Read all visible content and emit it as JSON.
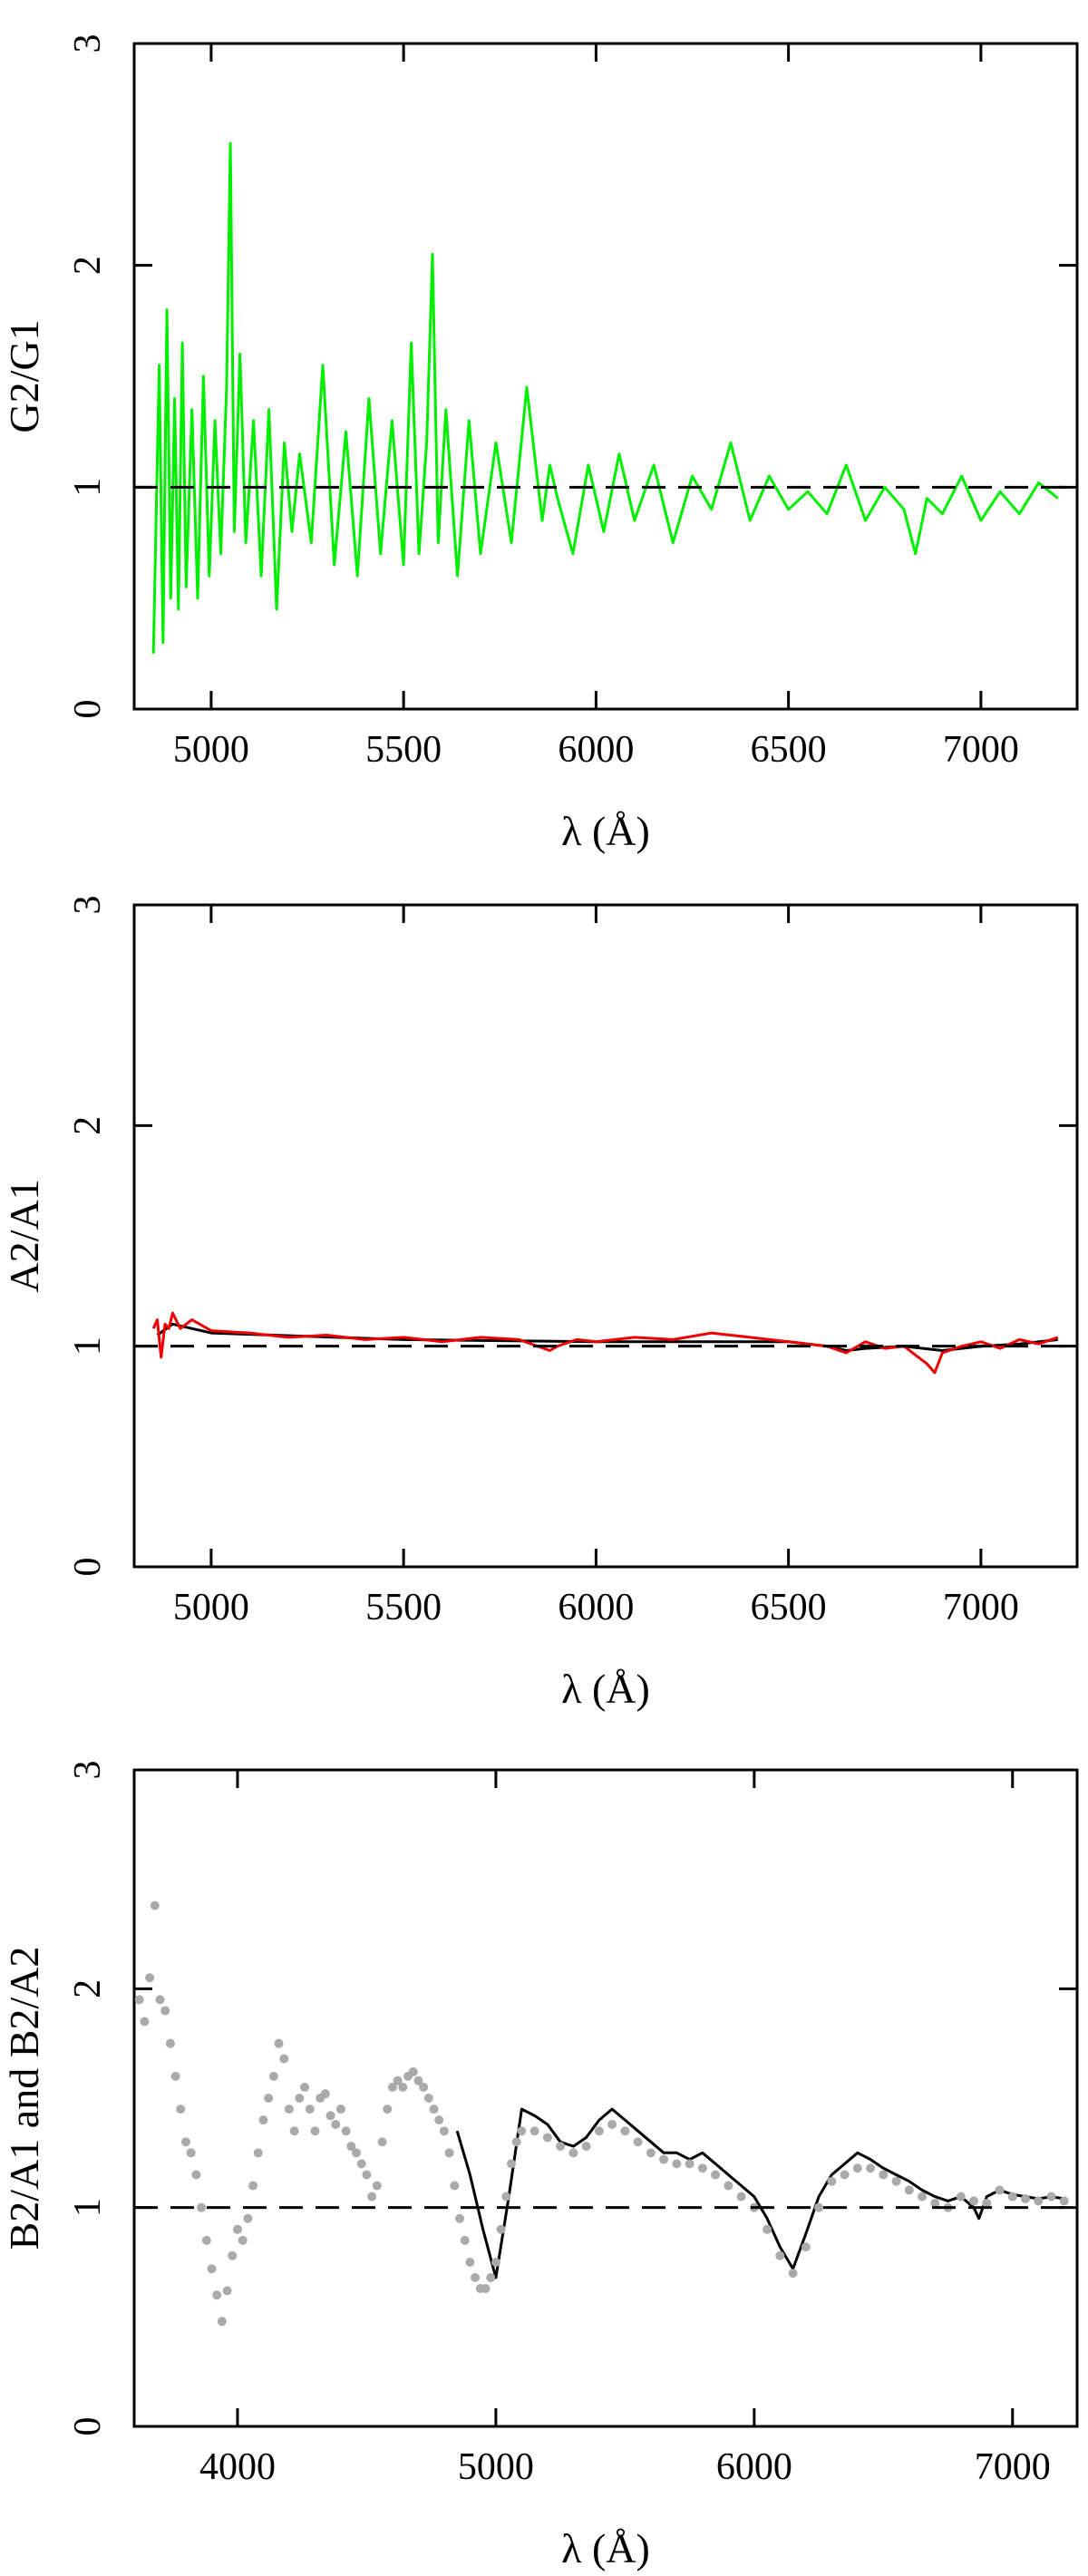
{
  "chart_data": [
    {
      "type": "line",
      "xlabel": "λ (Å)",
      "ylabel": "G2/G1",
      "xlim": [
        4800,
        7250
      ],
      "ylim": [
        0,
        3
      ],
      "xticks": [
        5000,
        5500,
        6000,
        6500,
        7000
      ],
      "yticks": [
        0,
        1,
        2,
        3
      ],
      "reference_line": 1,
      "series": [
        {
          "color": "#00ee00",
          "x": [
            4850,
            4865,
            4875,
            4885,
            4895,
            4905,
            4915,
            4925,
            4935,
            4950,
            4965,
            4980,
            4995,
            5010,
            5025,
            5040,
            5050,
            5060,
            5075,
            5090,
            5110,
            5130,
            5150,
            5170,
            5190,
            5210,
            5230,
            5260,
            5290,
            5320,
            5350,
            5380,
            5410,
            5440,
            5470,
            5500,
            5520,
            5540,
            5560,
            5575,
            5590,
            5610,
            5640,
            5670,
            5700,
            5740,
            5780,
            5820,
            5860,
            5880,
            5900,
            5940,
            5980,
            6020,
            6060,
            6100,
            6150,
            6200,
            6250,
            6300,
            6350,
            6400,
            6450,
            6500,
            6550,
            6600,
            6650,
            6700,
            6750,
            6800,
            6830,
            6860,
            6900,
            6950,
            7000,
            7050,
            7100,
            7150,
            7200
          ],
          "values": [
            0.25,
            1.55,
            0.3,
            1.8,
            0.5,
            1.4,
            0.45,
            1.65,
            0.55,
            1.35,
            0.5,
            1.5,
            0.6,
            1.3,
            0.7,
            1.45,
            2.55,
            0.8,
            1.6,
            0.75,
            1.3,
            0.6,
            1.35,
            0.45,
            1.2,
            0.8,
            1.15,
            0.75,
            1.55,
            0.65,
            1.25,
            0.6,
            1.4,
            0.7,
            1.3,
            0.65,
            1.65,
            0.7,
            1.2,
            2.05,
            0.75,
            1.35,
            0.6,
            1.3,
            0.7,
            1.2,
            0.75,
            1.45,
            0.85,
            1.1,
            0.95,
            0.7,
            1.1,
            0.8,
            1.15,
            0.85,
            1.1,
            0.75,
            1.05,
            0.9,
            1.2,
            0.85,
            1.05,
            0.9,
            0.98,
            0.88,
            1.1,
            0.85,
            1.0,
            0.9,
            0.7,
            0.95,
            0.88,
            1.05,
            0.85,
            0.98,
            0.88,
            1.02,
            0.95
          ]
        }
      ]
    },
    {
      "type": "line",
      "xlabel": "λ (Å)",
      "ylabel": "A2/A1",
      "xlim": [
        4800,
        7250
      ],
      "ylim": [
        0,
        3
      ],
      "xticks": [
        5000,
        5500,
        6000,
        6500,
        7000
      ],
      "yticks": [
        0,
        1,
        2,
        3
      ],
      "reference_line": 1,
      "series": [
        {
          "color": "#000000",
          "x": [
            4860,
            4900,
            5000,
            5500,
            6000,
            6500,
            6600,
            6650,
            6700,
            6800,
            6850,
            6900,
            7000,
            7100,
            7200
          ],
          "values": [
            1.05,
            1.1,
            1.06,
            1.03,
            1.02,
            1.02,
            1.0,
            0.98,
            0.99,
            1.0,
            0.99,
            0.98,
            1.0,
            1.01,
            1.03
          ]
        },
        {
          "color": "#ee0000",
          "x": [
            4850,
            4860,
            4870,
            4880,
            4890,
            4900,
            4920,
            4950,
            5000,
            5100,
            5200,
            5300,
            5400,
            5500,
            5600,
            5700,
            5800,
            5880,
            5900,
            5950,
            6000,
            6100,
            6200,
            6300,
            6400,
            6500,
            6600,
            6650,
            6700,
            6750,
            6800,
            6860,
            6880,
            6900,
            6950,
            7000,
            7050,
            7100,
            7150,
            7200
          ],
          "values": [
            1.08,
            1.12,
            0.95,
            1.1,
            1.08,
            1.15,
            1.08,
            1.12,
            1.07,
            1.06,
            1.04,
            1.05,
            1.03,
            1.04,
            1.02,
            1.04,
            1.03,
            0.98,
            1.0,
            1.03,
            1.02,
            1.04,
            1.03,
            1.06,
            1.04,
            1.02,
            1.0,
            0.97,
            1.02,
            0.99,
            1.0,
            0.92,
            0.88,
            0.97,
            1.0,
            1.02,
            0.99,
            1.03,
            1.01,
            1.04
          ]
        }
      ]
    },
    {
      "type": "line",
      "xlabel": "λ (Å)",
      "ylabel": "B2/A1 and B2/A2",
      "xlim": [
        3600,
        7250
      ],
      "ylim": [
        0,
        3
      ],
      "xticks": [
        4000,
        5000,
        6000,
        7000
      ],
      "yticks": [
        0,
        1,
        2,
        3
      ],
      "reference_line": 1,
      "series": [
        {
          "color": "#000000",
          "x": [
            4850,
            4900,
            4950,
            5000,
            5050,
            5100,
            5150,
            5200,
            5250,
            5300,
            5350,
            5400,
            5450,
            5500,
            5550,
            5600,
            5650,
            5700,
            5750,
            5800,
            5850,
            5900,
            5950,
            6000,
            6050,
            6100,
            6150,
            6200,
            6250,
            6300,
            6350,
            6400,
            6450,
            6500,
            6550,
            6600,
            6650,
            6700,
            6750,
            6800,
            6850,
            6870,
            6900,
            6950,
            7000,
            7050,
            7100,
            7150,
            7200
          ],
          "values": [
            1.35,
            1.15,
            0.9,
            0.68,
            1.05,
            1.45,
            1.42,
            1.38,
            1.3,
            1.28,
            1.32,
            1.4,
            1.45,
            1.4,
            1.35,
            1.3,
            1.25,
            1.25,
            1.22,
            1.25,
            1.2,
            1.15,
            1.1,
            1.05,
            0.95,
            0.82,
            0.72,
            0.88,
            1.05,
            1.15,
            1.2,
            1.25,
            1.22,
            1.18,
            1.15,
            1.12,
            1.08,
            1.05,
            1.03,
            1.05,
            1.0,
            0.95,
            1.05,
            1.08,
            1.06,
            1.05,
            1.04,
            1.05,
            1.04
          ]
        },
        {
          "color": "#aaaaaa",
          "marker": "dot",
          "x": [
            3620,
            3640,
            3660,
            3680,
            3700,
            3720,
            3740,
            3760,
            3780,
            3800,
            3820,
            3840,
            3860,
            3880,
            3900,
            3920,
            3940,
            3960,
            3980,
            4000,
            4020,
            4040,
            4060,
            4080,
            4100,
            4120,
            4140,
            4160,
            4180,
            4200,
            4220,
            4240,
            4260,
            4280,
            4300,
            4320,
            4340,
            4360,
            4380,
            4400,
            4420,
            4440,
            4460,
            4480,
            4500,
            4520,
            4540,
            4560,
            4580,
            4600,
            4620,
            4640,
            4660,
            4680,
            4700,
            4720,
            4740,
            4760,
            4780,
            4800,
            4820,
            4840,
            4860,
            4880,
            4900,
            4920,
            4940,
            4960,
            4980,
            5000,
            5020,
            5040,
            5060,
            5080,
            5100,
            5150,
            5200,
            5250,
            5300,
            5350,
            5400,
            5450,
            5500,
            5550,
            5600,
            5650,
            5700,
            5750,
            5800,
            5850,
            5900,
            5950,
            6000,
            6050,
            6100,
            6150,
            6200,
            6250,
            6300,
            6350,
            6400,
            6450,
            6500,
            6550,
            6600,
            6650,
            6700,
            6750,
            6800,
            6850,
            6900,
            6950,
            7000,
            7050,
            7100,
            7150,
            7200
          ],
          "values": [
            1.95,
            1.85,
            2.05,
            2.38,
            1.95,
            1.9,
            1.75,
            1.6,
            1.45,
            1.3,
            1.25,
            1.15,
            1.0,
            0.85,
            0.72,
            0.6,
            0.48,
            0.62,
            0.78,
            0.9,
            0.85,
            0.95,
            1.1,
            1.25,
            1.4,
            1.5,
            1.6,
            1.75,
            1.68,
            1.45,
            1.35,
            1.5,
            1.55,
            1.45,
            1.35,
            1.5,
            1.52,
            1.42,
            1.38,
            1.45,
            1.35,
            1.28,
            1.25,
            1.2,
            1.15,
            1.05,
            1.1,
            1.3,
            1.45,
            1.55,
            1.58,
            1.55,
            1.6,
            1.62,
            1.58,
            1.55,
            1.5,
            1.45,
            1.4,
            1.35,
            1.25,
            1.1,
            0.95,
            0.85,
            0.75,
            0.68,
            0.63,
            0.63,
            0.68,
            0.75,
            0.9,
            1.05,
            1.2,
            1.3,
            1.35,
            1.35,
            1.32,
            1.28,
            1.25,
            1.28,
            1.35,
            1.38,
            1.35,
            1.3,
            1.25,
            1.22,
            1.2,
            1.2,
            1.18,
            1.15,
            1.1,
            1.05,
            1.0,
            0.9,
            0.78,
            0.7,
            0.82,
            1.0,
            1.12,
            1.15,
            1.18,
            1.18,
            1.15,
            1.12,
            1.08,
            1.05,
            1.02,
            1.0,
            1.05,
            1.03,
            1.02,
            1.08,
            1.05,
            1.04,
            1.03,
            1.05,
            1.03
          ]
        }
      ]
    }
  ]
}
